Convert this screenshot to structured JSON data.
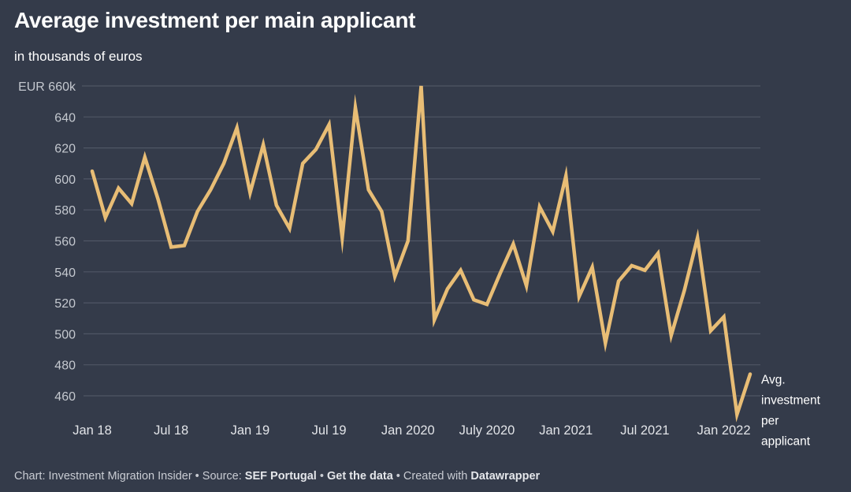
{
  "chart_data": {
    "type": "line",
    "title": "Average investment per main applicant",
    "subtitle": "in thousands of euros",
    "xlabel": "",
    "ylabel": "",
    "ylim": [
      450,
      660
    ],
    "yticks": [
      460,
      480,
      500,
      520,
      540,
      560,
      580,
      600,
      620,
      640,
      660
    ],
    "ytick_labels": [
      "460",
      "480",
      "500",
      "520",
      "540",
      "560",
      "580",
      "600",
      "620",
      "640",
      "EUR 660k"
    ],
    "xtick_labels": [
      {
        "label": "Jan 18",
        "index": 0
      },
      {
        "label": "Jul 18",
        "index": 6
      },
      {
        "label": "Jan 19",
        "index": 12
      },
      {
        "label": "Jul 19",
        "index": 18
      },
      {
        "label": "Jan 2020",
        "index": 24
      },
      {
        "label": "July 2020",
        "index": 30
      },
      {
        "label": "Jan 2021",
        "index": 36
      },
      {
        "label": "Jul 2021",
        "index": 42
      },
      {
        "label": "Jan 2022",
        "index": 48
      }
    ],
    "grid": true,
    "series": [
      {
        "name": "Avg. investment per applicant",
        "label_lines": [
          "Avg.",
          "investment",
          "per",
          "applicant"
        ],
        "color": "#e8bd75",
        "values": [
          605,
          575,
          594,
          584,
          614,
          587,
          556,
          557,
          579,
          593,
          610,
          633,
          591,
          622,
          583,
          568,
          610,
          619,
          635,
          562,
          646,
          593,
          579,
          537,
          560,
          660,
          509,
          529,
          541,
          522,
          519,
          539,
          558,
          531,
          582,
          566,
          602,
          524,
          543,
          494,
          534,
          544,
          541,
          552,
          499,
          528,
          562,
          502,
          511,
          448,
          474
        ]
      }
    ]
  },
  "footer": {
    "prefix": "Chart: Investment Migration Insider • Source: ",
    "source": "SEF Portugal",
    "sep1": " • ",
    "get_data": "Get the data",
    "sep2": " • Created with ",
    "tool": "Datawrapper"
  },
  "colors": {
    "background": "#343b4a",
    "line": "#e8bd75",
    "grid": "#4f5665"
  }
}
